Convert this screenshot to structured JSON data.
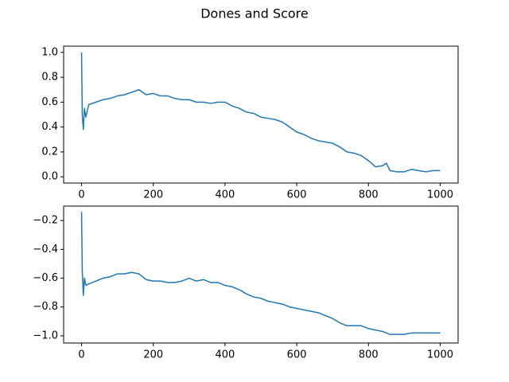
{
  "title": "Dones and Score",
  "chart_data": [
    {
      "type": "line",
      "color": "#1f77b4",
      "x": [
        0,
        2,
        5,
        8,
        12,
        20,
        40,
        60,
        80,
        100,
        120,
        140,
        160,
        180,
        200,
        220,
        240,
        260,
        280,
        300,
        320,
        340,
        360,
        380,
        400,
        420,
        440,
        460,
        480,
        500,
        520,
        540,
        560,
        580,
        600,
        620,
        640,
        660,
        680,
        700,
        720,
        740,
        760,
        780,
        800,
        820,
        840,
        850,
        860,
        880,
        900,
        920,
        940,
        960,
        980,
        1000
      ],
      "values": [
        1.0,
        0.5,
        0.38,
        0.55,
        0.48,
        0.58,
        0.6,
        0.62,
        0.63,
        0.65,
        0.66,
        0.68,
        0.7,
        0.66,
        0.67,
        0.65,
        0.65,
        0.63,
        0.62,
        0.62,
        0.6,
        0.6,
        0.59,
        0.6,
        0.6,
        0.57,
        0.55,
        0.52,
        0.51,
        0.48,
        0.47,
        0.46,
        0.44,
        0.4,
        0.36,
        0.34,
        0.31,
        0.29,
        0.28,
        0.27,
        0.24,
        0.2,
        0.19,
        0.17,
        0.13,
        0.08,
        0.09,
        0.11,
        0.05,
        0.04,
        0.04,
        0.06,
        0.05,
        0.04,
        0.05,
        0.05
      ],
      "xlim": [
        -50,
        1050
      ],
      "ylim": [
        -0.05,
        1.05
      ],
      "xticks": [
        0,
        200,
        400,
        600,
        800,
        1000
      ],
      "yticks": [
        {
          "value": 0,
          "label": "0.0"
        },
        0.2,
        0.4,
        0.6,
        0.8,
        {
          "value": 1,
          "label": "1.0"
        }
      ]
    },
    {
      "type": "line",
      "color": "#1f77b4",
      "x": [
        0,
        2,
        5,
        8,
        12,
        20,
        40,
        60,
        80,
        100,
        120,
        140,
        160,
        180,
        200,
        220,
        240,
        260,
        280,
        300,
        320,
        340,
        360,
        380,
        400,
        420,
        440,
        460,
        480,
        500,
        520,
        540,
        560,
        580,
        600,
        620,
        640,
        660,
        680,
        700,
        720,
        740,
        760,
        780,
        800,
        820,
        840,
        850,
        860,
        880,
        900,
        920,
        940,
        960,
        980,
        1000
      ],
      "values": [
        -0.14,
        -0.55,
        -0.72,
        -0.6,
        -0.65,
        -0.64,
        -0.62,
        -0.6,
        -0.59,
        -0.57,
        -0.57,
        -0.56,
        -0.57,
        -0.61,
        -0.62,
        -0.62,
        -0.63,
        -0.63,
        -0.62,
        -0.6,
        -0.62,
        -0.61,
        -0.63,
        -0.63,
        -0.65,
        -0.66,
        -0.68,
        -0.71,
        -0.73,
        -0.74,
        -0.76,
        -0.77,
        -0.78,
        -0.8,
        -0.81,
        -0.82,
        -0.83,
        -0.84,
        -0.86,
        -0.88,
        -0.91,
        -0.93,
        -0.93,
        -0.93,
        -0.95,
        -0.96,
        -0.97,
        -0.98,
        -0.99,
        -0.99,
        -0.99,
        -0.98,
        -0.98,
        -0.98,
        -0.98,
        -0.98
      ],
      "xlim": [
        -50,
        1050
      ],
      "ylim": [
        -1.05,
        -0.1
      ],
      "xticks": [
        0,
        200,
        400,
        600,
        800,
        1000
      ],
      "yticks": [
        {
          "value": -1,
          "label": "−1.0"
        },
        {
          "value": -0.8,
          "label": "−0.8"
        },
        {
          "value": -0.6,
          "label": "−0.6"
        },
        {
          "value": -0.4,
          "label": "−0.4"
        },
        {
          "value": -0.2,
          "label": "−0.2"
        }
      ]
    }
  ]
}
